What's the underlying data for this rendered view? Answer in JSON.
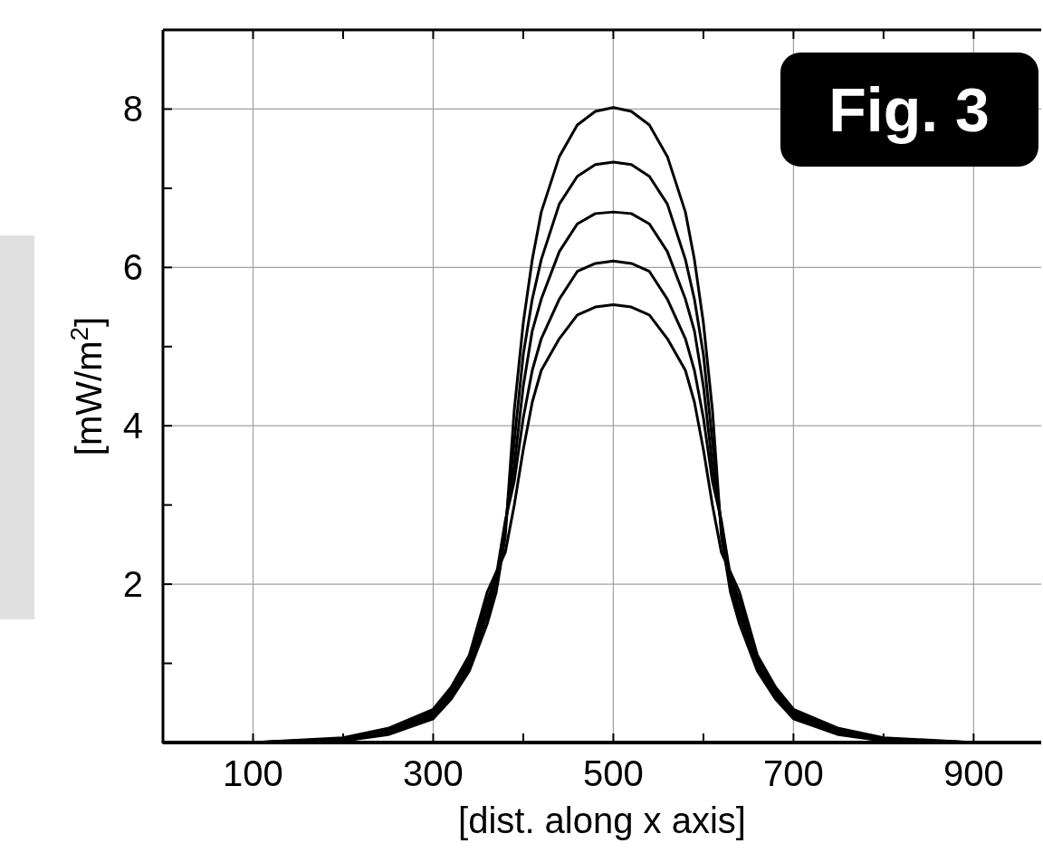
{
  "chart_data": {
    "type": "line",
    "xlabel": "[dist. along x axis]",
    "ylabel": "[mW/m$^{2}$]",
    "annotations": [
      "Fig. 3"
    ],
    "series": [
      {
        "color": "#000000",
        "x": [
          0,
          100,
          200,
          250,
          300,
          320,
          340,
          360,
          370,
          380,
          390,
          400,
          410,
          420,
          440,
          460,
          480,
          500,
          520,
          540,
          560,
          580,
          590,
          600,
          610,
          620,
          630,
          640,
          660,
          680,
          700,
          750,
          800,
          900,
          950
        ],
        "values": [
          0,
          0,
          0.02,
          0.1,
          0.3,
          0.55,
          0.9,
          1.5,
          1.9,
          2.6,
          4.2,
          5.3,
          6.1,
          6.7,
          7.4,
          7.8,
          7.97,
          8.02,
          7.97,
          7.8,
          7.4,
          6.7,
          6.1,
          5.3,
          4.2,
          2.6,
          1.9,
          1.5,
          0.9,
          0.55,
          0.3,
          0.1,
          0.02,
          0,
          0
        ]
      },
      {
        "color": "#000000",
        "x": [
          10,
          100,
          200,
          250,
          300,
          320,
          340,
          360,
          370,
          380,
          390,
          400,
          410,
          420,
          440,
          460,
          480,
          500,
          520,
          540,
          560,
          580,
          590,
          600,
          610,
          620,
          630,
          640,
          660,
          680,
          700,
          750,
          800,
          900,
          960
        ],
        "values": [
          0,
          0,
          0.03,
          0.12,
          0.33,
          0.58,
          0.95,
          1.6,
          2.0,
          2.7,
          3.8,
          4.9,
          5.6,
          6.1,
          6.8,
          7.15,
          7.3,
          7.33,
          7.3,
          7.15,
          6.8,
          6.1,
          5.6,
          4.9,
          3.8,
          2.7,
          2.0,
          1.6,
          0.95,
          0.58,
          0.33,
          0.12,
          0.03,
          0,
          0
        ]
      },
      {
        "color": "#000000",
        "x": [
          20,
          100,
          200,
          250,
          300,
          320,
          340,
          360,
          370,
          380,
          390,
          400,
          410,
          420,
          440,
          460,
          480,
          500,
          520,
          540,
          560,
          580,
          590,
          600,
          610,
          620,
          630,
          640,
          660,
          680,
          700,
          750,
          800,
          900,
          970
        ],
        "values": [
          0,
          0,
          0.04,
          0.14,
          0.36,
          0.62,
          1.0,
          1.7,
          2.05,
          2.75,
          3.5,
          4.5,
          5.2,
          5.6,
          6.2,
          6.55,
          6.68,
          6.7,
          6.68,
          6.55,
          6.2,
          5.6,
          5.2,
          4.5,
          3.5,
          2.75,
          2.05,
          1.7,
          1.0,
          0.62,
          0.36,
          0.14,
          0.04,
          0,
          0
        ]
      },
      {
        "color": "#000000",
        "x": [
          30,
          100,
          200,
          250,
          300,
          320,
          340,
          360,
          370,
          380,
          390,
          400,
          410,
          420,
          440,
          460,
          480,
          500,
          520,
          540,
          560,
          580,
          590,
          600,
          610,
          620,
          630,
          640,
          660,
          680,
          700,
          750,
          800,
          900,
          940
        ],
        "values": [
          0,
          0,
          0.05,
          0.16,
          0.39,
          0.66,
          1.05,
          1.8,
          2.1,
          2.8,
          3.3,
          4.1,
          4.7,
          5.1,
          5.6,
          5.95,
          6.05,
          6.08,
          6.05,
          5.95,
          5.6,
          5.1,
          4.7,
          4.1,
          3.3,
          2.8,
          2.1,
          1.8,
          1.05,
          0.66,
          0.39,
          0.16,
          0.05,
          0,
          0
        ]
      },
      {
        "color": "#000000",
        "x": [
          40,
          100,
          200,
          250,
          300,
          320,
          340,
          360,
          370,
          380,
          390,
          400,
          410,
          420,
          440,
          460,
          480,
          500,
          520,
          540,
          560,
          580,
          590,
          600,
          610,
          620,
          630,
          640,
          660,
          680,
          700,
          750,
          800,
          900,
          930
        ],
        "values": [
          0,
          0,
          0.06,
          0.18,
          0.42,
          0.7,
          1.1,
          1.9,
          2.15,
          2.4,
          3.0,
          3.7,
          4.3,
          4.7,
          5.1,
          5.4,
          5.5,
          5.53,
          5.5,
          5.4,
          5.1,
          4.7,
          4.3,
          3.7,
          3.0,
          2.4,
          2.15,
          1.9,
          1.1,
          0.7,
          0.42,
          0.18,
          0.06,
          0,
          0
        ]
      }
    ],
    "xlim": [
      0,
      975
    ],
    "ylim": [
      0,
      9
    ],
    "xticks": [
      100,
      {
        "value": 200,
        "label": null
      },
      300,
      {
        "value": 400,
        "label": null
      },
      500,
      {
        "value": 600,
        "label": null
      },
      700,
      {
        "value": 800,
        "label": null
      },
      900
    ],
    "yticks": [
      {
        "value": 1,
        "label": null
      },
      2,
      {
        "value": 3,
        "label": null
      },
      4,
      {
        "value": 5,
        "label": null
      },
      6,
      {
        "value": 7,
        "label": null
      },
      8
    ],
    "grid": true,
    "marker": "none",
    "line_style": "solid"
  }
}
